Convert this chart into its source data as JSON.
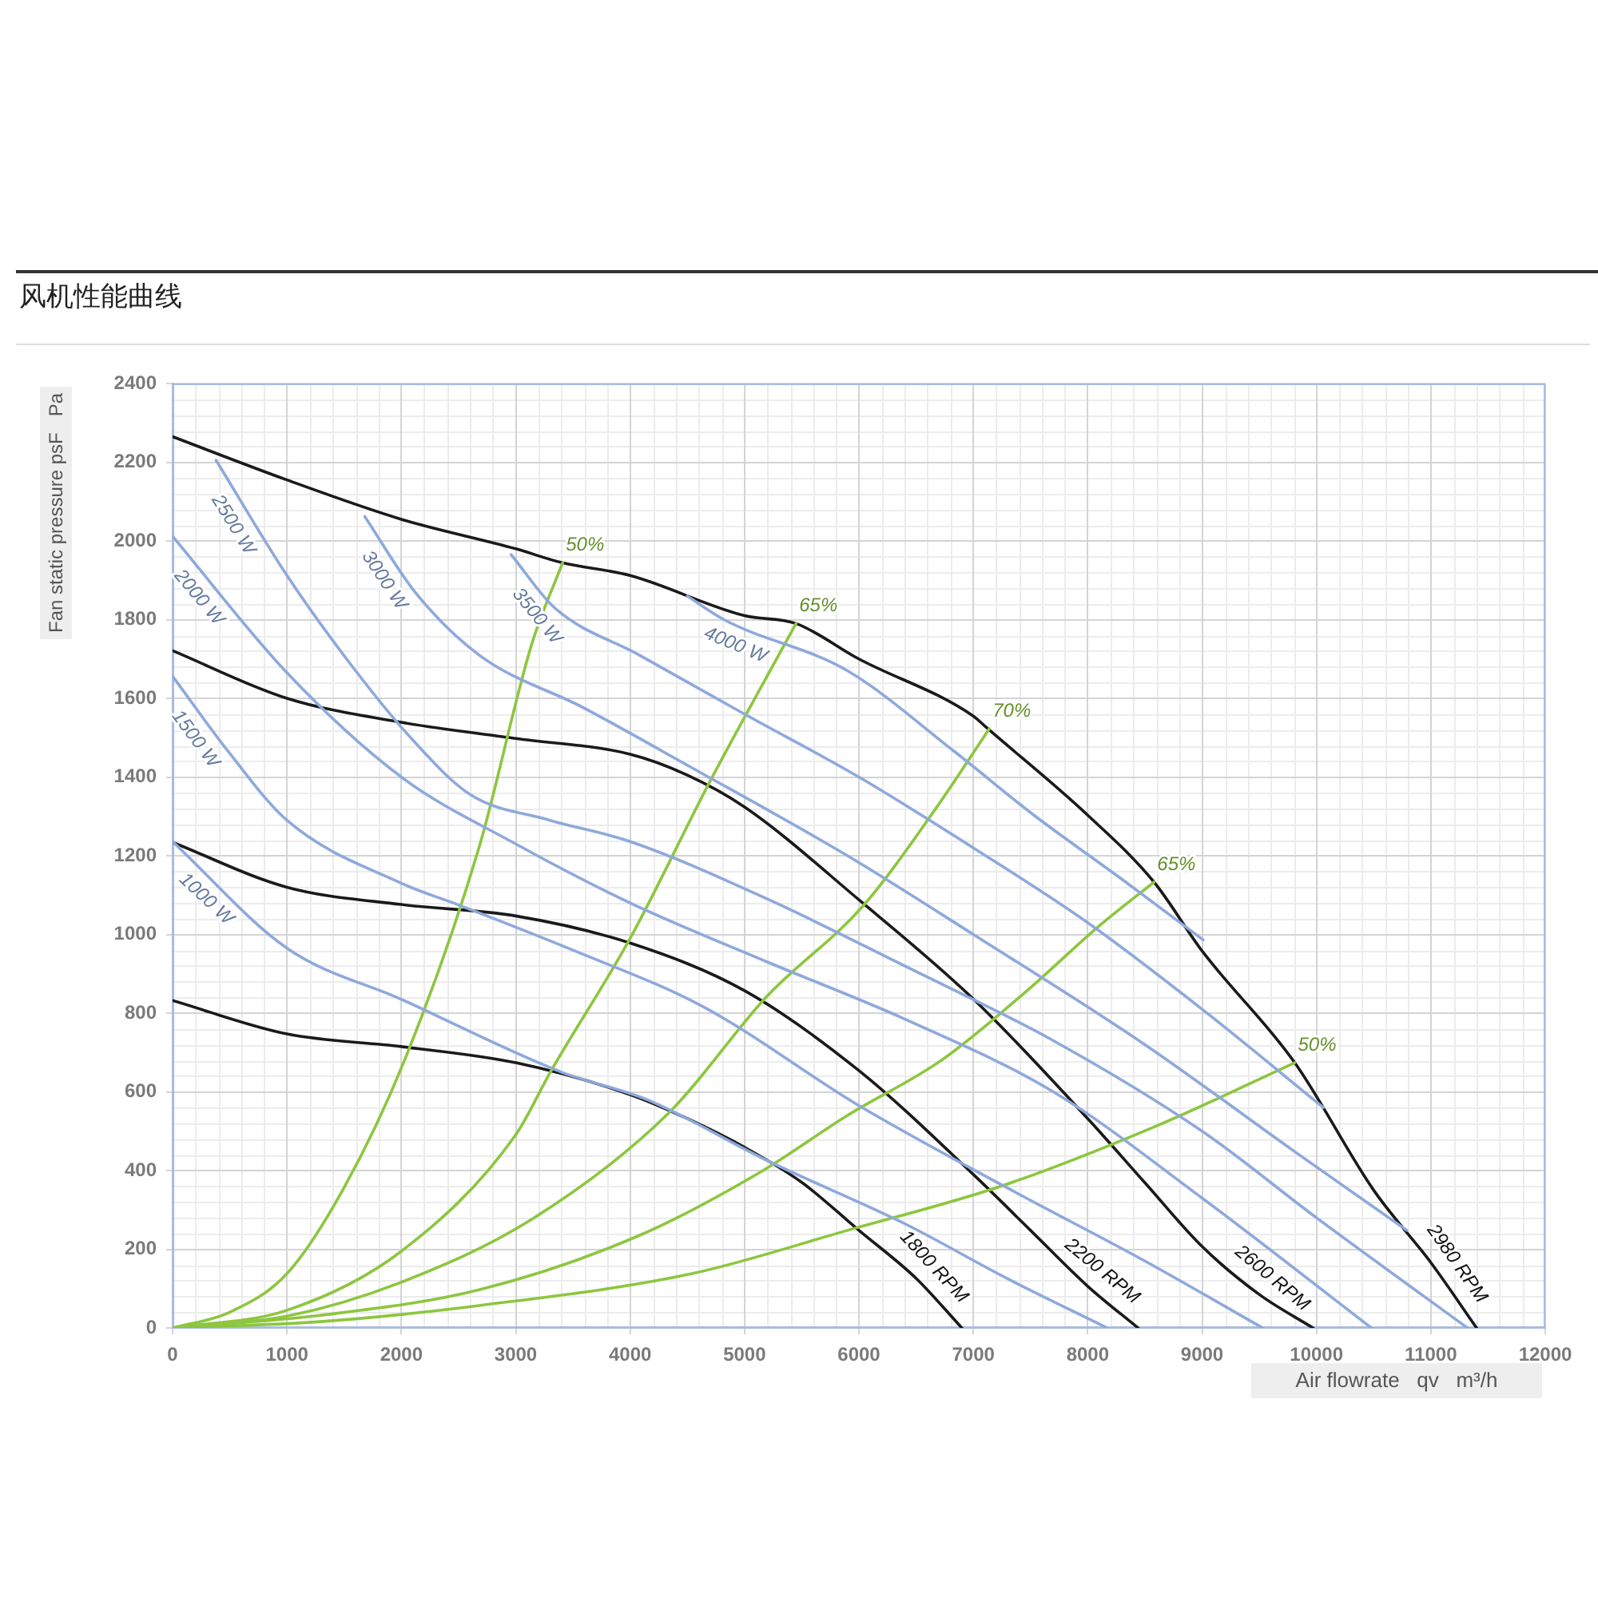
{
  "chart_data": {
    "type": "line",
    "title": "风机性能曲线",
    "xlabel": "Air flowrate   qv   m³/h",
    "ylabel": "Fan static pressure psF   Pa",
    "xlim": [
      0,
      12000
    ],
    "xticks": [
      0,
      1000,
      2000,
      3000,
      4000,
      5000,
      6000,
      7000,
      8000,
      9000,
      10000,
      11000,
      12000
    ],
    "ylim": [
      0,
      2400
    ],
    "yticks": [
      0,
      200,
      400,
      600,
      800,
      1000,
      1200,
      1400,
      1600,
      1800,
      2000,
      2200,
      2400
    ],
    "grid": true,
    "series": [
      {
        "name": "1000 W",
        "color": "#8ea9db",
        "x": [
          0,
          1000,
          2000,
          3400,
          4150,
          5200,
          6400,
          7300,
          8170
        ],
        "values": [
          1236,
          965,
          835,
          650,
          580,
          425,
          265,
          125,
          0
        ]
      },
      {
        "name": "1500 W",
        "color": "#8ea9db",
        "x": [
          0,
          500,
          1000,
          2000,
          2500,
          3500,
          4640,
          6000,
          7290,
          8500,
          9530
        ],
        "values": [
          1656,
          1460,
          1290,
          1130,
          1075,
          960,
          816,
          565,
          357,
          170,
          0
        ]
      },
      {
        "name": "2000 W",
        "color": "#8ea9db",
        "x": [
          0,
          1000,
          2000,
          3000,
          4000,
          5200,
          6400,
          7700,
          9000,
          10480
        ],
        "values": [
          2012,
          1665,
          1400,
          1230,
          1080,
          930,
          785,
          600,
          330,
          0
        ]
      },
      {
        "name": "2500 W",
        "color": "#8ea9db",
        "x": [
          380,
          1000,
          1600,
          2100,
          2600,
          3300,
          4000,
          5200,
          6400,
          7700,
          9000,
          10000,
          11320
        ],
        "values": [
          2205,
          1912,
          1670,
          1494,
          1356,
          1290,
          1236,
          1090,
          920,
          730,
          500,
          280,
          0
        ]
      },
      {
        "name": "3000 W",
        "color": "#8ea9db",
        "x": [
          1680,
          2120,
          2680,
          3600,
          4500,
          5900,
          7000,
          8500,
          9800,
          10790
        ],
        "values": [
          2062,
          1870,
          1710,
          1575,
          1430,
          1200,
          1000,
          720,
          450,
          248
        ]
      },
      {
        "name": "3500 W",
        "color": "#8ea9db",
        "x": [
          2960,
          3340,
          4080,
          5000,
          6000,
          7000,
          8000,
          9000,
          10060
        ],
        "values": [
          1965,
          1830,
          1710,
          1560,
          1400,
          1220,
          1030,
          810,
          560
        ]
      },
      {
        "name": "4000 W",
        "color": "#8ea9db",
        "x": [
          4500,
          4820,
          5900,
          6830,
          7530,
          8300,
          9010
        ],
        "values": [
          1860,
          1800,
          1670,
          1466,
          1303,
          1140,
          986
        ]
      },
      {
        "name": "50%",
        "color": "#8dc63f",
        "x": [
          0,
          500,
          1000,
          1500,
          2030,
          2680,
          3140,
          3410
        ],
        "values": [
          0,
          40,
          138,
          357,
          682,
          1222,
          1738,
          1945
        ]
      },
      {
        "name": "65%",
        "color": "#8dc63f",
        "x": [
          0,
          1000,
          2000,
          3000,
          3310,
          4000,
          4700,
          5450
        ],
        "values": [
          0,
          45,
          195,
          491,
          654,
          990,
          1390,
          1790
        ]
      },
      {
        "name": "70%",
        "color": "#8dc63f",
        "x": [
          0,
          1000,
          1980,
          3140,
          4330,
          5200,
          6035,
          6660,
          7140
        ],
        "values": [
          0,
          30,
          114,
          276,
          544,
          844,
          1072,
          1315,
          1523
        ]
      },
      {
        "name": "65%",
        "color": "#8dc63f",
        "x": [
          0,
          1290,
          2680,
          4080,
          5150,
          5900,
          6730,
          7470,
          8090,
          8580
        ],
        "values": [
          0,
          32,
          97,
          235,
          398,
          540,
          682,
          857,
          1019,
          1133
        ]
      },
      {
        "name": "50%",
        "color": "#8dc63f",
        "x": [
          0,
          1290,
          2680,
          4540,
          5900,
          7250,
          8590,
          9810
        ],
        "values": [
          0,
          16,
          57,
          138,
          248,
          361,
          512,
          674
        ]
      },
      {
        "name": "1800 RPM",
        "color": "#1a1a1a",
        "x": [
          0,
          1000,
          2000,
          3000,
          4000,
          4500,
          5000,
          5500,
          6000,
          6500,
          6900
        ],
        "values": [
          832,
          747,
          715,
          674,
          593,
          532,
          459,
          370,
          248,
          126,
          0
        ]
      },
      {
        "name": "2200 RPM",
        "color": "#1a1a1a",
        "x": [
          0,
          1000,
          2000,
          3000,
          4000,
          5000,
          6000,
          7000,
          7500,
          8000,
          8440
        ],
        "values": [
          1234,
          1120,
          1076,
          1047,
          978,
          857,
          654,
          390,
          248,
          106,
          0
        ]
      },
      {
        "name": "2600 RPM",
        "color": "#1a1a1a",
        "x": [
          0,
          1000,
          2000,
          3000,
          4000,
          4500,
          5000,
          6000,
          7000,
          8000,
          8500,
          9000,
          9500,
          9970
        ],
        "values": [
          1721,
          1600,
          1539,
          1498,
          1458,
          1405,
          1324,
          1088,
          836,
          532,
          369,
          207,
          85,
          0
        ]
      },
      {
        "name": "2980 RPM",
        "color": "#1a1a1a",
        "x": [
          0,
          1000,
          2000,
          3000,
          3400,
          4000,
          5000,
          5450,
          6000,
          7000,
          7110,
          8000,
          8580,
          9000,
          9810,
          10500,
          11000,
          11400
        ],
        "values": [
          2265,
          2155,
          2055,
          1980,
          1945,
          1912,
          1810,
          1790,
          1700,
          1555,
          1527,
          1303,
          1133,
          958,
          674,
          350,
          166,
          0
        ]
      }
    ]
  }
}
